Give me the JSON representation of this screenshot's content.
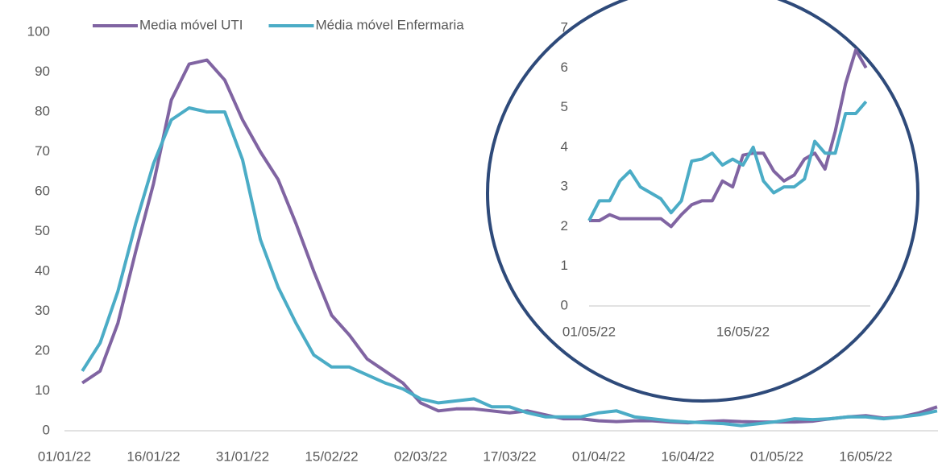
{
  "chart_data": [
    {
      "type": "line",
      "categories": [
        "01/01/22",
        null,
        null,
        null,
        null,
        "16/01/22",
        null,
        null,
        null,
        null,
        "31/01/22",
        null,
        null,
        null,
        null,
        "15/02/22",
        null,
        null,
        null,
        null,
        "02/03/22",
        null,
        null,
        null,
        null,
        "17/03/22",
        null,
        null,
        null,
        null,
        "01/04/22",
        null,
        null,
        null,
        null,
        "16/04/22",
        null,
        null,
        null,
        null,
        "01/05/22",
        null,
        null,
        null,
        null,
        "16/05/22",
        null,
        null,
        null,
        null
      ],
      "series": [
        {
          "name": "Media móvel UTI",
          "color": "#8064a2",
          "values": [
            null,
            12,
            15,
            27,
            45,
            62,
            83,
            92,
            93,
            88,
            78,
            70,
            63,
            52,
            40,
            29,
            24,
            18,
            15,
            12,
            7,
            5,
            5.5,
            5.5,
            5,
            4.5,
            5,
            4,
            3,
            3,
            2.5,
            2.3,
            2.5,
            2.5,
            2.2,
            2,
            2.3,
            2.5,
            2.3,
            2.2,
            2.2,
            2.2,
            2.4,
            3,
            3.5,
            3.8,
            3.2,
            3.5,
            4.5,
            6
          ]
        },
        {
          "name": "Média móvel Enfermaria",
          "color": "#4bacc6",
          "values": [
            null,
            15,
            22,
            35,
            52,
            67,
            78,
            81,
            80,
            80,
            68,
            48,
            36,
            27,
            19,
            16,
            16,
            14,
            12,
            10.5,
            8,
            7,
            7.5,
            8,
            6,
            6,
            4.5,
            3.5,
            3.5,
            3.5,
            4.5,
            5,
            3.5,
            3,
            2.5,
            2.2,
            2,
            1.8,
            1.3,
            1.8,
            2.3,
            3,
            2.8,
            3,
            3.5,
            3.5,
            3,
            3.5,
            4,
            5
          ]
        }
      ],
      "ylim": [
        0,
        100
      ],
      "yticks": [
        0,
        10,
        20,
        30,
        40,
        50,
        60,
        70,
        80,
        90,
        100
      ],
      "legend": "top-left"
    },
    {
      "type": "line",
      "categories": [
        "01/05/22",
        null,
        null,
        null,
        null,
        null,
        null,
        null,
        null,
        null,
        null,
        null,
        null,
        null,
        null,
        "16/05/22",
        null,
        null,
        null,
        null,
        null,
        null,
        null,
        null,
        null,
        null,
        null,
        null
      ],
      "series": [
        {
          "color": "#8064a2",
          "values": [
            2.15,
            2.15,
            2.3,
            2.2,
            2.2,
            2.2,
            2.2,
            2.2,
            2.0,
            2.3,
            2.55,
            2.65,
            2.65,
            3.15,
            3.0,
            3.8,
            3.85,
            3.85,
            3.4,
            3.15,
            3.3,
            3.7,
            3.85,
            3.45,
            4.4,
            5.6,
            6.45,
            6.0
          ]
        },
        {
          "color": "#4bacc6",
          "values": [
            2.15,
            2.65,
            2.65,
            3.15,
            3.4,
            3.0,
            2.85,
            2.7,
            2.35,
            2.65,
            3.65,
            3.7,
            3.85,
            3.55,
            3.7,
            3.55,
            4.0,
            3.15,
            2.85,
            3.0,
            3.0,
            3.2,
            4.15,
            3.85,
            3.85,
            4.85,
            4.85,
            5.15
          ]
        }
      ],
      "ylim": [
        0,
        7
      ],
      "yticks": [
        0,
        1,
        2,
        3,
        4,
        5,
        6,
        7
      ]
    }
  ]
}
